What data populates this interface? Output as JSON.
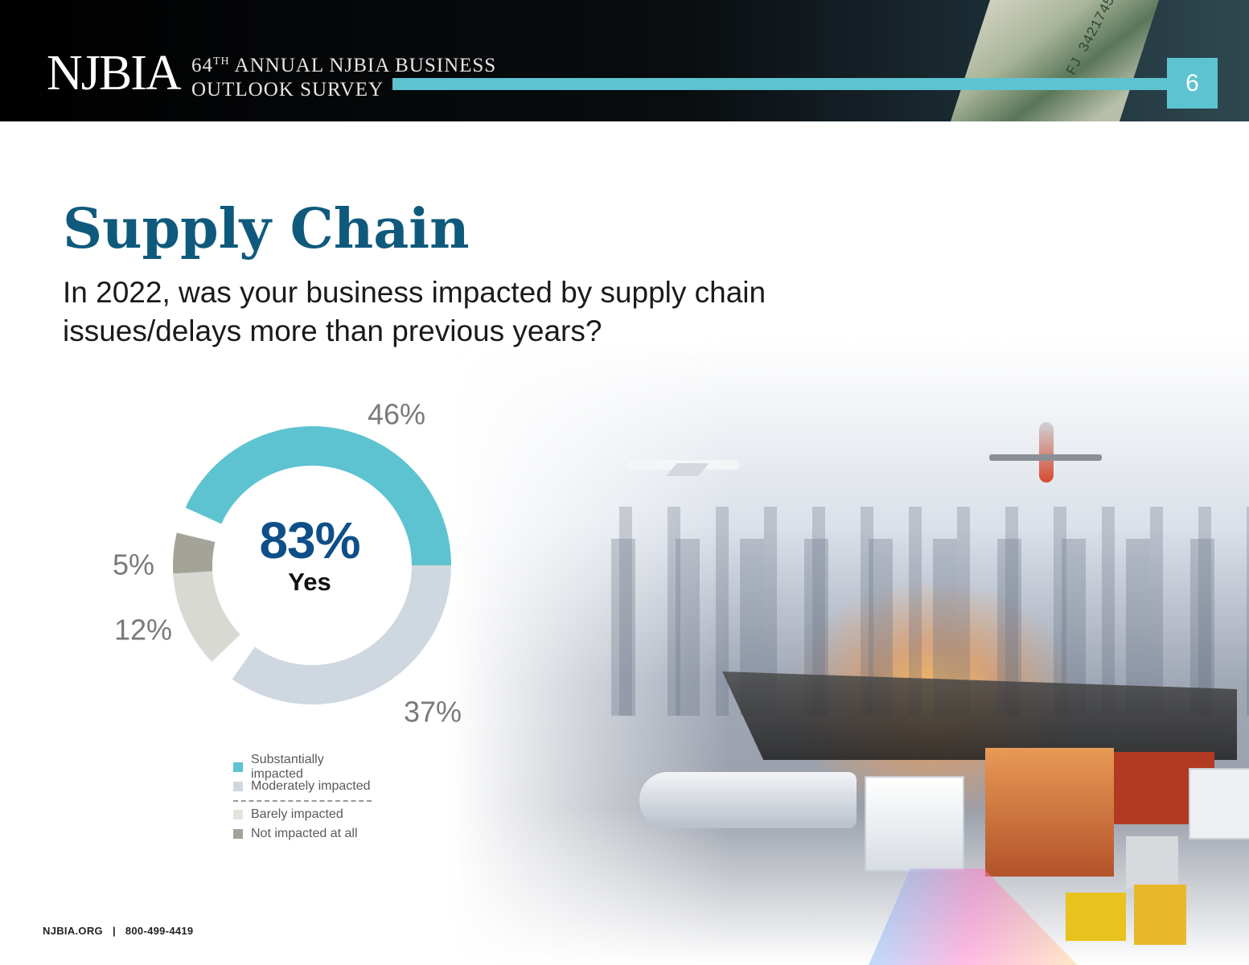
{
  "header": {
    "logo": "NJBIA",
    "survey_ordinal": "64",
    "survey_ordinal_suffix": "TH",
    "survey_line1_rest": "ANNUAL NJBIA BUSINESS",
    "survey_line2": "OUTLOOK SURVEY",
    "page_number": "6",
    "accent_color": "#5ec3d0"
  },
  "title": "Supply Chain",
  "question": "In 2022, was your business impacted by supply chain issues/delays more than previous years?",
  "chart_data": {
    "type": "pie",
    "style": "donut",
    "center_value": "83%",
    "center_label": "Yes",
    "categories": [
      "Substantially impacted",
      "Moderately impacted",
      "Barely impacted",
      "Not impacted at all"
    ],
    "values": [
      46,
      37,
      12,
      5
    ],
    "labels": [
      "46%",
      "37%",
      "12%",
      "5%"
    ],
    "colors": [
      "#5ec3d0",
      "#cfd8e0",
      "#d9d9d4",
      "#a3a398"
    ],
    "legend": "bottom",
    "legend_divider_after_index": 1
  },
  "footer": {
    "website": "NJBIA.ORG",
    "separator": "|",
    "phone": "800-499-4419"
  }
}
